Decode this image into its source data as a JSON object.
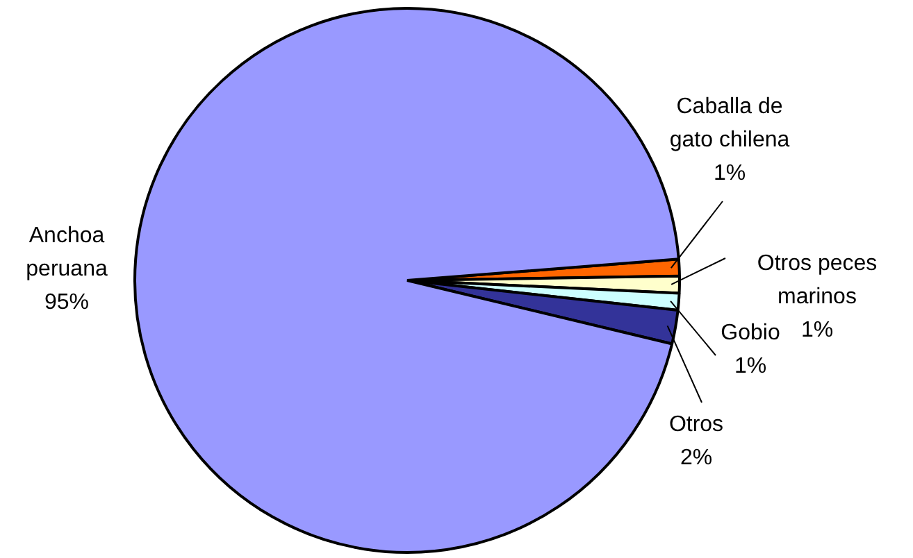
{
  "chart_data": {
    "type": "pie",
    "categories": [
      "Caballa de gato chilena",
      "Otros peces marinos",
      "Gobio",
      "Otros",
      "Anchoa peruana"
    ],
    "values": [
      1,
      1,
      1,
      2,
      95
    ],
    "colors": [
      "#ff6600",
      "#ffffcc",
      "#ccffff",
      "#333399",
      "#9999ff"
    ],
    "value_labels": [
      "1%",
      "1%",
      "1%",
      "2%",
      "95%"
    ]
  }
}
